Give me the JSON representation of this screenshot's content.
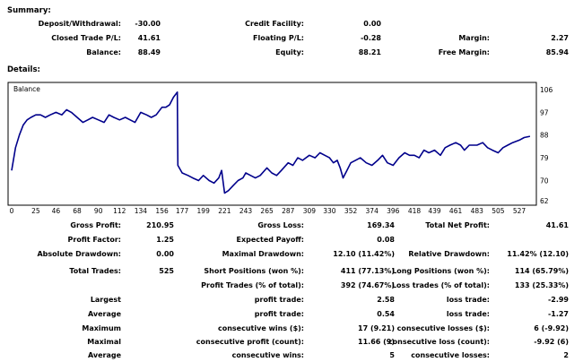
{
  "summary": {
    "heading": "Summary:",
    "rows": [
      [
        {
          "label": "Deposit/Withdrawal:",
          "value": "-30.00"
        },
        {
          "label": "Credit Facility:",
          "value": "0.00"
        },
        {
          "label": "",
          "value": ""
        }
      ],
      [
        {
          "label": "Closed Trade P/L:",
          "value": "41.61"
        },
        {
          "label": "Floating P/L:",
          "value": "-0.28"
        },
        {
          "label": "Margin:",
          "value": "2.27"
        }
      ],
      [
        {
          "label": "Balance:",
          "value": "88.49"
        },
        {
          "label": "Equity:",
          "value": "88.21"
        },
        {
          "label": "Free Margin:",
          "value": "85.94"
        }
      ]
    ]
  },
  "details": {
    "heading": "Details:",
    "chart_label": "Balance"
  },
  "chart_data": {
    "type": "line",
    "title": "Balance",
    "xlabel": "",
    "ylabel": "",
    "x_ticks": [
      "0",
      "25",
      "46",
      "68",
      "90",
      "112",
      "134",
      "156",
      "177",
      "199",
      "221",
      "243",
      "265",
      "287",
      "309",
      "330",
      "352",
      "374",
      "396",
      "418",
      "439",
      "461",
      "483",
      "505",
      "527"
    ],
    "y_ticks": [
      106,
      97,
      88,
      79,
      70,
      62
    ],
    "xlim": [
      0,
      540
    ],
    "ylim": [
      62,
      106
    ],
    "series": [
      {
        "color": "#00008b",
        "x": [
          0,
          4,
          8,
          12,
          16,
          20,
          25,
          30,
          35,
          40,
          46,
          52,
          57,
          62,
          68,
          74,
          79,
          84,
          90,
          96,
          101,
          106,
          112,
          118,
          123,
          128,
          134,
          140,
          145,
          150,
          156,
          160,
          164,
          168,
          170,
          172,
          172.5,
          177,
          183,
          188,
          194,
          199,
          205,
          210,
          215,
          218,
          220,
          221,
          225,
          230,
          235,
          240,
          243,
          248,
          253,
          258,
          265,
          270,
          275,
          280,
          287,
          292,
          297,
          302,
          309,
          315,
          320,
          325,
          330,
          334,
          338,
          341,
          344,
          348,
          352,
          357,
          362,
          368,
          374,
          380,
          385,
          390,
          396,
          402,
          408,
          413,
          418,
          423,
          428,
          433,
          439,
          445,
          450,
          455,
          461,
          466,
          470,
          475,
          483,
          489,
          494,
          499,
          505,
          510,
          515,
          520,
          527,
          532,
          538
        ],
        "values": [
          74,
          83,
          88,
          92,
          94,
          95,
          96,
          96,
          95,
          96,
          97,
          96,
          98,
          97,
          95,
          93,
          94,
          95,
          94,
          93,
          96,
          95,
          94,
          95,
          94,
          93,
          97,
          96,
          95,
          96,
          99,
          99,
          100,
          103,
          104,
          105,
          76,
          73,
          72,
          71,
          70,
          72,
          70,
          69,
          71,
          74,
          68,
          65,
          66,
          68,
          70,
          71,
          73,
          72,
          71,
          72,
          75,
          73,
          72,
          74,
          77,
          76,
          79,
          78,
          80,
          79,
          81,
          80,
          79,
          77,
          78,
          75,
          71,
          74,
          77,
          78,
          79,
          77,
          76,
          78,
          80,
          77,
          76,
          79,
          81,
          80,
          80,
          79,
          82,
          81,
          82,
          80,
          83,
          84,
          85,
          84,
          82,
          84,
          84,
          85,
          83,
          82,
          81,
          83,
          84,
          85,
          86,
          87,
          87.5
        ]
      }
    ]
  },
  "stats": {
    "rows": [
      [
        {
          "label": "Gross Profit:",
          "value": "210.95"
        },
        {
          "label": "Gross Loss:",
          "value": "169.34"
        },
        {
          "label": "Total Net Profit:",
          "value": "41.61"
        }
      ],
      [
        {
          "label": "Profit Factor:",
          "value": "1.25"
        },
        {
          "label": "Expected Payoff:",
          "value": "0.08"
        },
        {
          "label": "",
          "value": ""
        }
      ],
      [
        {
          "label": "Absolute Drawdown:",
          "value": "0.00"
        },
        {
          "label": "Maximal Drawdown:",
          "value": "12.10 (11.42%)"
        },
        {
          "label": "Relative Drawdown:",
          "value": "11.42% (12.10)"
        }
      ],
      [
        {
          "label": "Total Trades:",
          "value": "525"
        },
        {
          "label": "Short Positions (won %):",
          "value": "411 (77.13%)"
        },
        {
          "label": "Long Positions (won %):",
          "value": "114 (65.79%)"
        }
      ],
      [
        {
          "label": "",
          "value": ""
        },
        {
          "label": "Profit Trades (% of total):",
          "value": "392 (74.67%)"
        },
        {
          "label": "Loss trades (% of total):",
          "value": "133 (25.33%)"
        }
      ],
      [
        {
          "label": "Largest",
          "value": ""
        },
        {
          "label": "profit trade:",
          "value": "2.58"
        },
        {
          "label": "loss trade:",
          "value": "-2.99"
        }
      ],
      [
        {
          "label": "Average",
          "value": ""
        },
        {
          "label": "profit trade:",
          "value": "0.54"
        },
        {
          "label": "loss trade:",
          "value": "-1.27"
        }
      ],
      [
        {
          "label": "Maximum",
          "value": ""
        },
        {
          "label": "consecutive wins ($):",
          "value": "17 (9.21)"
        },
        {
          "label": "consecutive losses ($):",
          "value": "6 (-9.92)"
        }
      ],
      [
        {
          "label": "Maximal",
          "value": ""
        },
        {
          "label": "consecutive profit (count):",
          "value": "11.66 (9)"
        },
        {
          "label": "consecutive loss (count):",
          "value": "-9.92 (6)"
        }
      ],
      [
        {
          "label": "Average",
          "value": ""
        },
        {
          "label": "consecutive wins:",
          "value": "5"
        },
        {
          "label": "consecutive losses:",
          "value": "2"
        }
      ]
    ]
  }
}
